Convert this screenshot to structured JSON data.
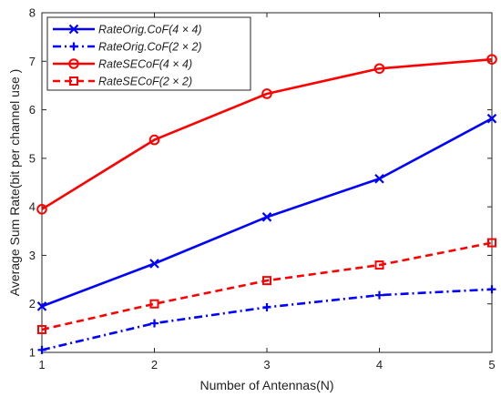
{
  "chart_data": {
    "type": "line",
    "xlabel": "Number of Antennas(N)",
    "ylabel": "Average Sum Rate(bit per channel use )",
    "x": [
      1,
      2,
      3,
      4,
      5
    ],
    "xlim": [
      1,
      5
    ],
    "ylim": [
      1,
      8
    ],
    "xticks": [
      "1",
      "2",
      "3",
      "4",
      "5"
    ],
    "yticks": [
      "1",
      "2",
      "3",
      "4",
      "5",
      "6",
      "7",
      "8"
    ],
    "grid": false,
    "legend_position": "top-left",
    "series": [
      {
        "name": "RateOrig.CoF(4 × 4)",
        "values": [
          1.95,
          2.83,
          3.79,
          4.58,
          5.82
        ],
        "color": "#0000ff",
        "line": "solid",
        "marker": "x-marker"
      },
      {
        "name": "RateOrig.CoF(2 × 2)",
        "values": [
          1.05,
          1.6,
          1.93,
          2.18,
          2.3
        ],
        "color": "#0000ff",
        "line": "dashdot",
        "marker": "plus-marker"
      },
      {
        "name": "RateSECoF(4 × 4)",
        "values": [
          3.95,
          5.38,
          6.33,
          6.85,
          7.04
        ],
        "color": "#ff0000",
        "line": "solid",
        "marker": "circle-marker"
      },
      {
        "name": "RateSECoF(2 × 2)",
        "values": [
          1.47,
          2.0,
          2.48,
          2.8,
          3.26
        ],
        "color": "#ff0000",
        "line": "dashed",
        "marker": "square-marker"
      }
    ]
  }
}
